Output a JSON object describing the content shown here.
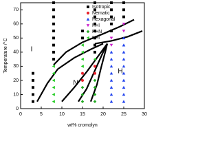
{
  "chart_data": {
    "type": "scatter",
    "x_label": "wt% cromolyn",
    "y_label": "Temperature /°C",
    "xlim": [
      0,
      30
    ],
    "xticks": [
      0,
      5,
      10,
      15,
      20,
      25,
      30
    ],
    "ylim": [
      0,
      75
    ],
    "yticks": [
      0,
      10,
      20,
      30,
      40,
      50,
      60,
      70
    ],
    "legend": "upper right",
    "region_labels": [
      "I",
      "N",
      "H"
    ],
    "series": [
      {
        "name": "Isotropic",
        "color": "#000000",
        "marker": "square",
        "x": [
          3,
          3,
          3,
          3,
          3,
          8,
          8,
          8,
          8,
          8,
          8,
          8,
          8,
          8,
          15,
          15,
          18,
          18,
          18,
          18,
          18,
          18,
          18,
          18,
          22,
          22,
          22,
          22,
          22,
          25,
          25,
          25
        ],
        "y": [
          5,
          10,
          15,
          20,
          25,
          35,
          40,
          45,
          50,
          55,
          60,
          65,
          70,
          75,
          50,
          55,
          40,
          45,
          50,
          55,
          60,
          65,
          70,
          75,
          55,
          60,
          65,
          70,
          75,
          65,
          70,
          75
        ]
      },
      {
        "name": "Nematic",
        "color": "#e8202a",
        "marker": "circle",
        "x": [
          15,
          15,
          18,
          18
        ],
        "y": [
          20,
          25,
          25,
          30
        ]
      },
      {
        "name": "Hexagonal",
        "color": "#2244ee",
        "marker": "triangle-up",
        "x": [
          22,
          22,
          22,
          22,
          22,
          22,
          22,
          22,
          25,
          25,
          25,
          25,
          25,
          25,
          25,
          25,
          25,
          25
        ],
        "y": [
          5,
          10,
          15,
          20,
          25,
          30,
          35,
          40,
          5,
          10,
          15,
          20,
          25,
          30,
          35,
          40,
          45,
          50
        ]
      },
      {
        "name": "H+I",
        "color": "#cc22cc",
        "marker": "triangle-down",
        "x": [
          22,
          22,
          25,
          25
        ],
        "y": [
          45,
          50,
          55,
          60
        ]
      },
      {
        "name": "H+N",
        "color": "#22aa22",
        "marker": "diamond",
        "x": [
          15,
          15,
          15,
          18,
          18,
          18,
          18
        ],
        "y": [
          5,
          10,
          15,
          5,
          10,
          15,
          20
        ]
      },
      {
        "name": "N+I",
        "color": "#22cc22",
        "marker": "triangle-left",
        "x": [
          8,
          8,
          8,
          8,
          8,
          8,
          15,
          15,
          15,
          15,
          18
        ],
        "y": [
          5,
          10,
          15,
          20,
          25,
          30,
          30,
          35,
          40,
          45,
          35
        ]
      }
    ],
    "boundaries": [
      {
        "x": [
          4,
          6.5,
          9,
          13,
          17,
          20
        ],
        "y": [
          5,
          18,
          28,
          36,
          42,
          46
        ]
      },
      {
        "x": [
          8,
          11,
          15,
          20,
          24,
          27.5
        ],
        "y": [
          31,
          40,
          47,
          53,
          58,
          63
        ]
      },
      {
        "x": [
          18,
          22,
          26,
          29.5
        ],
        "y": [
          46,
          48,
          51,
          55
        ]
      },
      {
        "x": [
          10,
          13,
          16,
          19,
          21
        ],
        "y": [
          5,
          15,
          26,
          38,
          46
        ]
      },
      {
        "x": [
          14,
          16,
          18,
          20,
          21
        ],
        "y": [
          5,
          14,
          27,
          40,
          46
        ]
      },
      {
        "x": [
          17,
          18.5,
          19.5,
          20.5,
          21
        ],
        "y": [
          5,
          17,
          29,
          40,
          46
        ]
      }
    ]
  }
}
